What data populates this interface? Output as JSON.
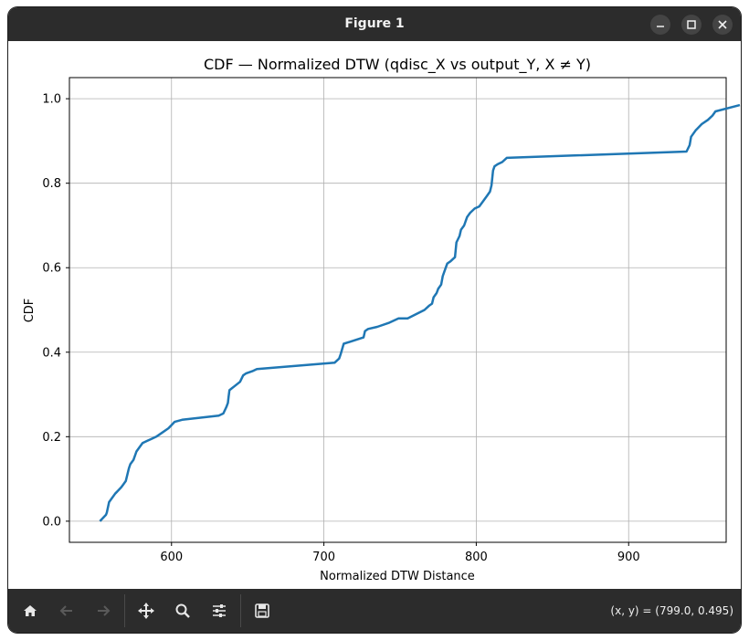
{
  "window": {
    "title": "Figure 1",
    "controls": [
      "minimize",
      "maximize",
      "close"
    ]
  },
  "toolbar": {
    "buttons": [
      "home-icon",
      "back-icon",
      "forward-icon",
      "pan-icon",
      "zoom-icon",
      "configure-icon",
      "save-icon"
    ],
    "coords": "(x, y) = (799.0, 0.495)"
  },
  "colors": {
    "line": "#1f77b4",
    "grid": "#b0b0b0",
    "titlebar": "#2c2c2c"
  },
  "chart_data": {
    "type": "line",
    "title": "CDF — Normalized DTW (qdisc_X vs output_Y, X ≠ Y)",
    "xlabel": "Normalized DTW Distance",
    "ylabel": "CDF",
    "xlim": [
      533,
      964
    ],
    "ylim": [
      -0.05,
      1.05
    ],
    "xticks": [
      600,
      700,
      800,
      900
    ],
    "yticks": [
      0.0,
      0.2,
      0.4,
      0.6,
      0.8,
      1.0
    ],
    "xtick_labels": [
      "600",
      "700",
      "800",
      "900"
    ],
    "ytick_labels": [
      "0.0",
      "0.2",
      "0.4",
      "0.6",
      "0.8",
      "1.0"
    ],
    "grid": true,
    "series": [
      {
        "x": [
          553,
          557,
          557.5,
          559,
          561,
          563,
          567,
          568,
          570,
          572,
          573,
          575,
          577,
          579,
          581,
          584,
          587,
          590,
          594,
          598,
          602,
          607,
          631,
          634,
          636,
          637,
          637.5,
          638,
          645,
          647,
          649,
          653,
          656,
          707,
          710,
          711,
          713,
          726,
          727,
          729,
          735,
          743,
          749,
          755,
          766,
          769,
          771,
          772,
          774,
          775,
          777,
          778,
          780,
          781,
          783,
          786,
          787,
          789,
          790,
          792,
          794,
          796,
          799,
          802,
          804,
          807,
          809,
          810,
          811,
          812,
          814,
          817,
          820,
          938,
          940,
          941,
          944,
          948,
          952,
          955,
          957,
          973
        ],
        "y": [
          0.0,
          0.015,
          0.02,
          0.045,
          0.055,
          0.065,
          0.08,
          0.085,
          0.095,
          0.125,
          0.135,
          0.145,
          0.165,
          0.175,
          0.185,
          0.19,
          0.195,
          0.2,
          0.21,
          0.22,
          0.235,
          0.24,
          0.25,
          0.255,
          0.27,
          0.28,
          0.295,
          0.31,
          0.33,
          0.345,
          0.35,
          0.355,
          0.36,
          0.375,
          0.385,
          0.395,
          0.42,
          0.435,
          0.45,
          0.455,
          0.46,
          0.47,
          0.48,
          0.48,
          0.5,
          0.51,
          0.515,
          0.53,
          0.54,
          0.55,
          0.56,
          0.58,
          0.6,
          0.61,
          0.615,
          0.625,
          0.66,
          0.675,
          0.69,
          0.7,
          0.72,
          0.73,
          0.74,
          0.745,
          0.755,
          0.77,
          0.78,
          0.795,
          0.83,
          0.84,
          0.845,
          0.85,
          0.86,
          0.875,
          0.89,
          0.91,
          0.925,
          0.94,
          0.95,
          0.96,
          0.97,
          0.985
        ]
      }
    ]
  }
}
